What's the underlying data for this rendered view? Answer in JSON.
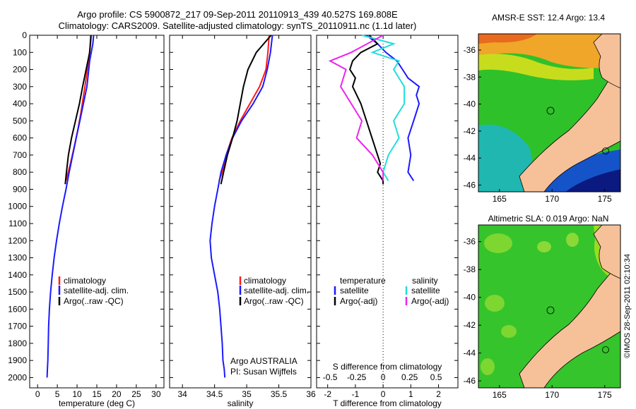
{
  "figure": {
    "title_line1": "Argo profile: CS 5900872_217 09-Sep-2011 20110913_439 40.527S 169.808E",
    "title_line2": "Climatology: CARS2009. Satellite-adjusted climatology: synTS_20110911.nc (1.1d later)",
    "side_stamp": "©IMOS 28-Sep-2011 02:10:34"
  },
  "colors": {
    "climatology": "#ff1a1a",
    "satellite": "#1a1aff",
    "argo": "#000000",
    "salinity_satellite": "#22dddd",
    "salinity_argo": "#ee22ee",
    "land": "#f6c199"
  },
  "chart_data": [
    {
      "type": "line",
      "panel": "temperature",
      "xlabel": "temperature (deg C)",
      "ylabel": "",
      "xlim": [
        -2,
        32
      ],
      "ylim": [
        2060,
        0
      ],
      "xticks": [
        "0",
        "5",
        "10",
        "15",
        "20",
        "25",
        "30"
      ],
      "yticks": [
        "0",
        "100",
        "200",
        "300",
        "400",
        "500",
        "600",
        "700",
        "800",
        "900",
        "1000",
        "1100",
        "1200",
        "1300",
        "1400",
        "1500",
        "1600",
        "1700",
        "1800",
        "1900",
        "2000"
      ],
      "legend": [
        "climatology",
        "satellite-adj. clim.",
        "Argo(..raw -QC)"
      ],
      "series": [
        {
          "name": "climatology",
          "color": "#ff1a1a",
          "x": [
            13.6,
            13.4,
            12.9,
            12.0,
            11.0,
            10.2,
            9.3,
            8.3,
            7.2
          ],
          "y": [
            0,
            50,
            150,
            300,
            450,
            550,
            650,
            750,
            850
          ]
        },
        {
          "name": "satellite-adj. clim.",
          "color": "#1a1aff",
          "x": [
            14.2,
            14.0,
            13.2,
            12.5,
            11.6,
            10.7,
            9.8,
            8.9,
            8.0,
            7.2,
            6.3,
            5.5,
            4.8,
            4.2,
            3.7,
            3.3,
            3.0,
            2.8,
            2.7,
            2.6,
            2.5,
            2.4
          ],
          "y": [
            0,
            50,
            150,
            300,
            400,
            500,
            600,
            700,
            800,
            900,
            1000,
            1100,
            1200,
            1300,
            1400,
            1500,
            1600,
            1700,
            1800,
            1900,
            1950,
            2000
          ]
        },
        {
          "name": "Argo(..raw -QC)",
          "color": "#000000",
          "x": [
            13.5,
            13.2,
            12.3,
            11.4,
            10.6,
            9.6,
            8.6,
            7.8,
            7.3,
            7.0
          ],
          "y": [
            0,
            100,
            200,
            300,
            400,
            500,
            600,
            700,
            800,
            870
          ]
        }
      ]
    },
    {
      "type": "line",
      "panel": "salinity",
      "xlabel": "salinity",
      "ylabel": "",
      "xlim": [
        33.8,
        36.0
      ],
      "ylim": [
        2060,
        0
      ],
      "xticks": [
        "34",
        "34.5",
        "35",
        "35.5",
        "36"
      ],
      "legend": [
        "climatology",
        "satellite-adj. clim.",
        "Argo(..raw -QC)"
      ],
      "annotations": [
        "Argo AUSTRALIA",
        "PI: Susan Wijffels"
      ],
      "series": [
        {
          "name": "climatology",
          "color": "#ff1a1a",
          "x": [
            35.35,
            35.33,
            35.3,
            35.2,
            35.05,
            34.9,
            34.77,
            34.68,
            34.62,
            34.57
          ],
          "y": [
            0,
            100,
            200,
            300,
            400,
            500,
            600,
            700,
            800,
            850
          ]
        },
        {
          "name": "satellite-adj. clim.",
          "color": "#1a1aff",
          "x": [
            35.4,
            35.37,
            35.32,
            35.25,
            35.1,
            34.92,
            34.78,
            34.68,
            34.6,
            34.55,
            34.5,
            34.46,
            34.43,
            34.45,
            34.5,
            34.55,
            34.58,
            34.6,
            34.62,
            34.63,
            34.65,
            34.66
          ],
          "y": [
            0,
            100,
            200,
            300,
            400,
            500,
            600,
            700,
            800,
            900,
            1000,
            1100,
            1200,
            1300,
            1400,
            1500,
            1600,
            1700,
            1800,
            1900,
            1950,
            2000
          ]
        },
        {
          "name": "Argo(..raw -QC)",
          "color": "#000000",
          "x": [
            35.38,
            35.15,
            35.02,
            34.95,
            34.9,
            34.85,
            34.78,
            34.7,
            34.64,
            34.6
          ],
          "y": [
            0,
            100,
            200,
            300,
            400,
            500,
            600,
            700,
            800,
            870
          ]
        }
      ]
    },
    {
      "type": "line",
      "panel": "difference",
      "xlabel": "T difference from climatology",
      "xlabel_top": "S difference from climatology",
      "xlim": [
        -2.4,
        2.7
      ],
      "ylim": [
        2060,
        0
      ],
      "xticks": [
        "-2",
        "-1",
        "0",
        "1",
        "2"
      ],
      "xticks_top": [
        "-0.5",
        "-0.25",
        "0",
        "0.25",
        "0.5"
      ],
      "legend_headers": [
        "temperature",
        "salinity"
      ],
      "legend": [
        "satellite",
        "Argo(-adj)",
        "satellite",
        "Argo(-adj)"
      ],
      "series": [
        {
          "name": "satellite",
          "group": "temperature",
          "color": "#1a1aff",
          "x": [
            -0.6,
            -0.2,
            0.1,
            0.5,
            0.7,
            0.9,
            1.3,
            1.2,
            1.3,
            1.1,
            0.9,
            1.0,
            0.9,
            1.1
          ],
          "y": [
            0,
            50,
            100,
            150,
            200,
            250,
            300,
            350,
            400,
            500,
            600,
            700,
            800,
            850
          ]
        },
        {
          "name": "Argo(-adj)",
          "group": "temperature",
          "color": "#000000",
          "x": [
            -0.5,
            -0.2,
            -0.8,
            -1.1,
            -1.2,
            -1.0,
            -1.1,
            -0.8,
            -0.6,
            -0.4,
            -0.2,
            -0.1,
            -0.2,
            0.0,
            0.0
          ],
          "y": [
            0,
            50,
            100,
            150,
            200,
            250,
            300,
            400,
            500,
            600,
            700,
            750,
            800,
            850,
            870
          ]
        },
        {
          "name": "satellite",
          "group": "salinity",
          "color": "#22dddd",
          "x": [
            -0.2,
            0.1,
            -0.1,
            0.15,
            0.1,
            0.2,
            0.2,
            0.1,
            0.15,
            0.05,
            0.0,
            0.05
          ],
          "y": [
            0,
            50,
            100,
            150,
            200,
            300,
            400,
            500,
            600,
            700,
            800,
            850
          ]
        },
        {
          "name": "Argo(-adj)",
          "group": "salinity",
          "color": "#ee22ee",
          "x": [
            0.0,
            -0.3,
            -0.5,
            -0.35,
            -0.4,
            -0.3,
            -0.2,
            -0.25,
            -0.1,
            0.0,
            0.0
          ],
          "y": [
            0,
            100,
            150,
            200,
            300,
            400,
            500,
            600,
            700,
            800,
            850
          ]
        }
      ]
    },
    {
      "type": "heatmap",
      "panel": "sst_map",
      "title": "AMSR-E SST: 12.4 Argo: 13.4",
      "xlim": [
        163,
        176.5
      ],
      "ylim": [
        -46.5,
        -34.8
      ],
      "xticks": [
        "165",
        "170",
        "175"
      ],
      "yticks": [
        "-36",
        "-38",
        "-40",
        "-42",
        "-44",
        "-46"
      ],
      "argo_position": [
        169.808,
        -40.527
      ]
    },
    {
      "type": "heatmap",
      "panel": "sla_map",
      "title": "Altimetric SLA: 0.019 Argo: NaN",
      "xlim": [
        163,
        176.5
      ],
      "ylim": [
        -46.5,
        -34.8
      ],
      "xticks": [
        "165",
        "170",
        "175"
      ],
      "yticks": [
        "-36",
        "-38",
        "-40",
        "-42",
        "-44",
        "-46"
      ],
      "argo_position": [
        169.808,
        -40.527
      ]
    }
  ]
}
